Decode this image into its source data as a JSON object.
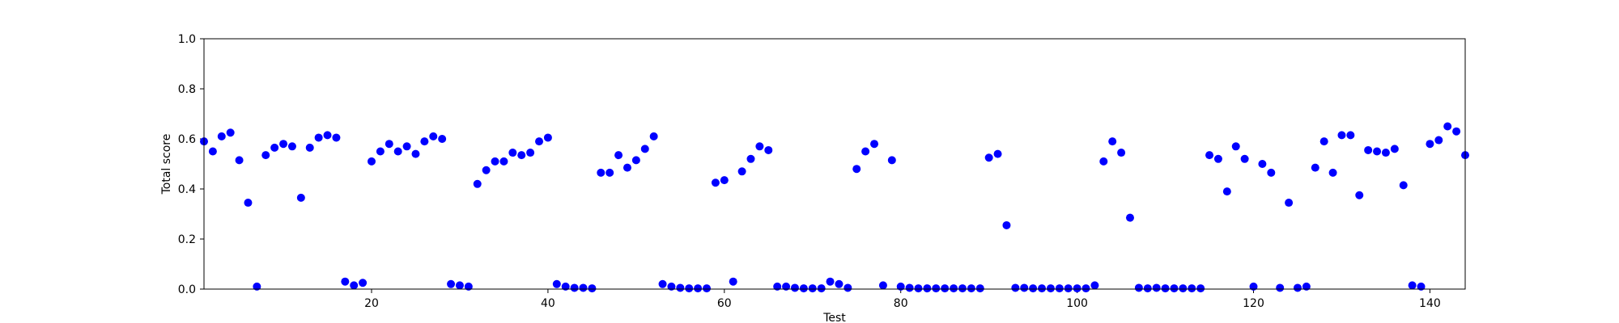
{
  "chart_data": {
    "type": "scatter",
    "xlabel": "Test",
    "ylabel": "Total score",
    "xlim": [
      1,
      144
    ],
    "ylim": [
      0.0,
      1.0
    ],
    "x_ticks": [
      20,
      40,
      60,
      80,
      100,
      120,
      140
    ],
    "y_ticks": [
      0.0,
      0.2,
      0.4,
      0.6,
      0.8,
      1.0
    ],
    "x_tick_labels": [
      "20",
      "40",
      "60",
      "80",
      "100",
      "120",
      "140"
    ],
    "y_tick_labels": [
      "0.0",
      "0.2",
      "0.4",
      "0.6",
      "0.8",
      "1.0"
    ],
    "grid": false,
    "marker_color": "#0000ff",
    "series": [
      {
        "x": [
          1,
          2,
          3,
          4,
          5,
          6,
          7,
          8,
          9,
          10,
          11,
          12,
          13,
          14,
          15,
          16,
          17,
          18,
          19,
          20,
          21,
          22,
          23,
          24,
          25,
          26,
          27,
          28,
          29,
          30,
          31,
          32,
          33,
          34,
          35,
          36,
          37,
          38,
          39,
          40,
          41,
          42,
          43,
          44,
          45,
          46,
          47,
          48,
          49,
          50,
          51,
          52,
          53,
          54,
          55,
          56,
          57,
          58,
          59,
          60,
          61,
          62,
          63,
          64,
          65,
          66,
          67,
          68,
          69,
          70,
          71,
          72,
          73,
          74,
          75,
          76,
          77,
          78,
          79,
          80,
          81,
          82,
          83,
          84,
          85,
          86,
          87,
          88,
          89,
          90,
          91,
          92,
          93,
          94,
          95,
          96,
          97,
          98,
          99,
          100,
          101,
          102,
          103,
          104,
          105,
          106,
          107,
          108,
          109,
          110,
          111,
          112,
          113,
          114,
          115,
          116,
          117,
          118,
          119,
          120,
          121,
          122,
          123,
          124,
          125,
          126,
          127,
          128,
          129,
          130,
          131,
          132,
          133,
          134,
          135,
          136,
          137,
          138,
          139,
          140,
          141,
          142,
          143,
          144
        ],
        "y": [
          0.59,
          0.55,
          0.61,
          0.625,
          0.515,
          0.345,
          0.01,
          0.535,
          0.565,
          0.58,
          0.57,
          0.365,
          0.565,
          0.605,
          0.615,
          0.605,
          0.03,
          0.015,
          0.025,
          0.51,
          0.55,
          0.58,
          0.55,
          0.57,
          0.54,
          0.59,
          0.61,
          0.6,
          0.02,
          0.015,
          0.01,
          0.42,
          0.475,
          0.51,
          0.51,
          0.545,
          0.535,
          0.545,
          0.59,
          0.605,
          0.02,
          0.01,
          0.005,
          0.005,
          0.003,
          0.465,
          0.465,
          0.535,
          0.485,
          0.515,
          0.56,
          0.61,
          0.02,
          0.01,
          0.005,
          0.003,
          0.003,
          0.003,
          0.425,
          0.435,
          0.03,
          0.47,
          0.52,
          0.57,
          0.555,
          0.01,
          0.01,
          0.005,
          0.003,
          0.003,
          0.003,
          0.03,
          0.02,
          0.005,
          0.48,
          0.55,
          0.58,
          0.015,
          0.515,
          0.01,
          0.005,
          0.003,
          0.003,
          0.003,
          0.003,
          0.003,
          0.003,
          0.003,
          0.003,
          0.525,
          0.54,
          0.255,
          0.005,
          0.005,
          0.003,
          0.003,
          0.003,
          0.003,
          0.003,
          0.003,
          0.003,
          0.015,
          0.51,
          0.59,
          0.545,
          0.285,
          0.005,
          0.003,
          0.005,
          0.003,
          0.003,
          0.003,
          0.003,
          0.003,
          0.535,
          0.52,
          0.39,
          0.57,
          0.52,
          0.01,
          0.5,
          0.465,
          0.005,
          0.345,
          0.005,
          0.01,
          0.485,
          0.59,
          0.465,
          0.615,
          0.615,
          0.375,
          0.555,
          0.55,
          0.545,
          0.56,
          0.415,
          0.015,
          0.01,
          0.58,
          0.595,
          0.65,
          0.63,
          0.535
        ]
      }
    ]
  }
}
